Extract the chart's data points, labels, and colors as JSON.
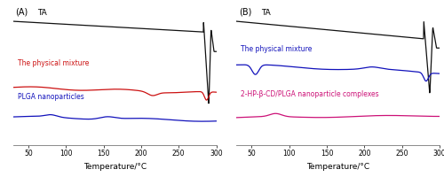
{
  "panel_A_label": "(A)",
  "panel_B_label": "(B)",
  "xlabel": "Temperature/°C",
  "ylabel_A": "TA",
  "ylabel_B": "TA",
  "x_range": [
    30,
    300
  ],
  "x_ticks": [
    50,
    100,
    150,
    200,
    250,
    300
  ],
  "bg_color": "#ffffff",
  "line_A": {
    "TA": {
      "color": "#111111"
    },
    "physical_mixture": {
      "color": "#cc1111",
      "label": "The physical mixture"
    },
    "PLGA": {
      "color": "#1111bb",
      "label": "PLGA nanoparticles"
    }
  },
  "line_B": {
    "TA": {
      "color": "#111111"
    },
    "physical_mixture": {
      "color": "#1111bb",
      "label": "The physical mixture"
    },
    "HPBCD_PLGA": {
      "color": "#cc1177",
      "label": "2-HP-β-CD/PLGA nanoparticle complexes"
    }
  },
  "lw": 0.9
}
